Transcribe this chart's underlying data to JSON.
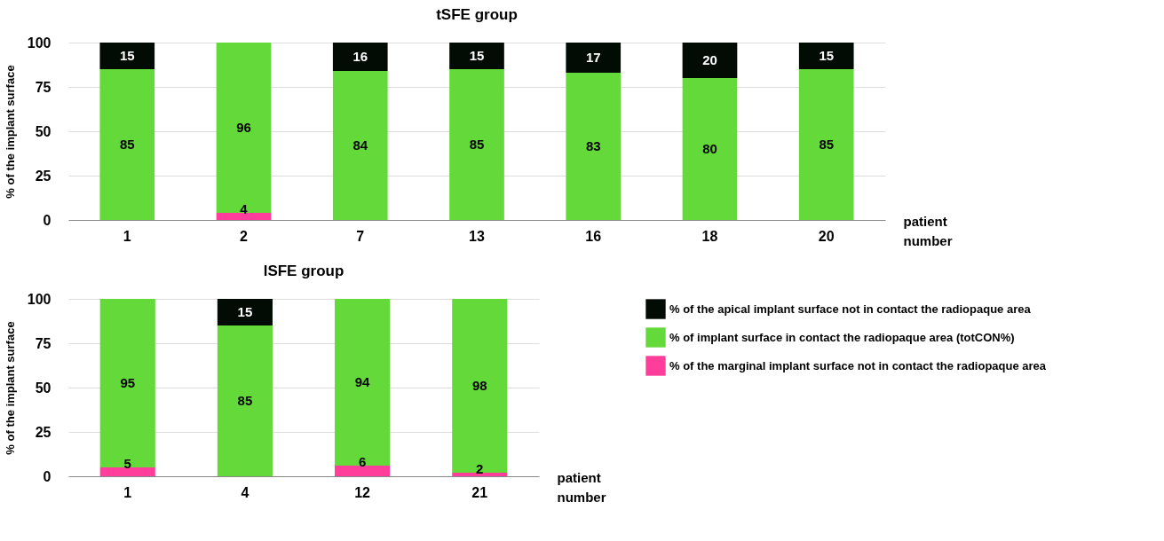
{
  "chart_data": [
    {
      "type": "bar",
      "title": "tSFE group",
      "xlabel": "patient number",
      "ylabel": "% of the implant surface",
      "stacked": true,
      "categories": [
        "1",
        "2",
        "7",
        "13",
        "16",
        "18",
        "20"
      ],
      "ylim": [
        0,
        100
      ],
      "yticks": [
        0,
        25,
        50,
        75,
        100
      ],
      "grid": "y",
      "legend": false,
      "series": [
        {
          "color": "#ff3d9a",
          "values": [
            0,
            4,
            0,
            0,
            0,
            0,
            0
          ],
          "value_labels": [
            null,
            "4",
            null,
            null,
            null,
            null,
            null
          ]
        },
        {
          "color": "#63d93a",
          "values": [
            85,
            96,
            84,
            85,
            83,
            80,
            85
          ],
          "value_labels": [
            "85",
            "96",
            "84",
            "85",
            "83",
            "80",
            "85"
          ]
        },
        {
          "color": "#030b05",
          "values": [
            15,
            0,
            16,
            15,
            17,
            20,
            15
          ],
          "value_labels": [
            "15",
            null,
            "16",
            "15",
            "17",
            "20",
            "15"
          ]
        }
      ]
    },
    {
      "type": "bar",
      "title": "lSFE group",
      "xlabel": "patient number",
      "ylabel": "% of the implant surface",
      "stacked": true,
      "categories": [
        "1",
        "4",
        "12",
        "21"
      ],
      "ylim": [
        0,
        100
      ],
      "yticks": [
        0,
        25,
        50,
        75,
        100
      ],
      "grid": "y",
      "legend": "right",
      "series": [
        {
          "name": "% of the marginal implant surface not in contact the radiopaque area",
          "color": "#ff3d9a",
          "values": [
            5,
            0,
            6,
            2
          ],
          "value_labels": [
            "5",
            null,
            "6",
            "2"
          ]
        },
        {
          "name": "% of implant surface in contact the radiopaque area (totCON%)",
          "color": "#63d93a",
          "values": [
            95,
            85,
            94,
            98
          ],
          "value_labels": [
            "95",
            "85",
            "94",
            "98"
          ]
        },
        {
          "name": "% of the apical implant surface not in contact the radiopaque area",
          "color": "#030b05",
          "values": [
            0,
            15,
            0,
            0
          ],
          "value_labels": [
            null,
            "15",
            null,
            null
          ]
        }
      ]
    }
  ]
}
